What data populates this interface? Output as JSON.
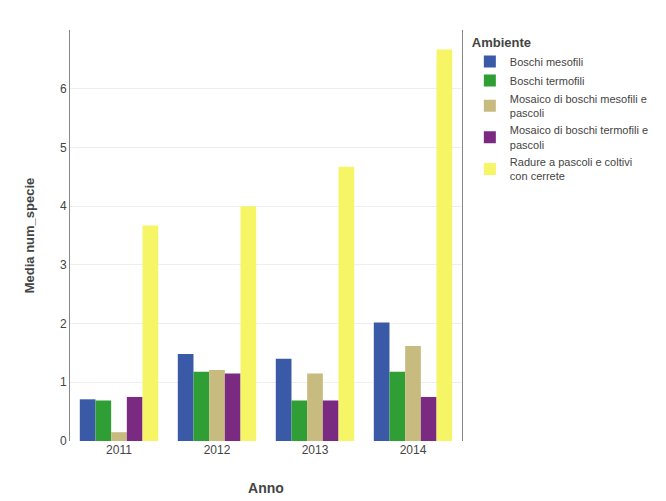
{
  "chart_data": {
    "type": "bar",
    "xlabel": "Anno",
    "ylabel": "Media num_specie",
    "legend_title": "Ambiente",
    "categories": [
      "2011",
      "2012",
      "2013",
      "2014"
    ],
    "series": [
      {
        "name": "Boschi mesofili",
        "color": "#3a5aa8",
        "values": [
          0.71,
          1.48,
          1.4,
          2.02
        ]
      },
      {
        "name": "Boschi termofili",
        "color": "#2e9e35",
        "values": [
          0.69,
          1.18,
          0.69,
          1.18
        ]
      },
      {
        "name": "Mosaico di boschi mesofili e\npascoli",
        "color": "#c8bb80",
        "values": [
          0.15,
          1.21,
          1.15,
          1.62
        ]
      },
      {
        "name": "Mosaico di boschi termofili e\npascoli",
        "color": "#7b2a82",
        "values": [
          0.75,
          1.15,
          0.69,
          0.75
        ]
      },
      {
        "name": "Radure a pascoli e coltivi\ncon cerrete",
        "color": "#f5f565",
        "values": [
          3.67,
          4.0,
          4.67,
          6.67
        ]
      }
    ],
    "ylim": [
      0,
      7
    ],
    "yticks": [
      0,
      1,
      2,
      3,
      4,
      5,
      6
    ],
    "grid": true,
    "legend": "right"
  }
}
